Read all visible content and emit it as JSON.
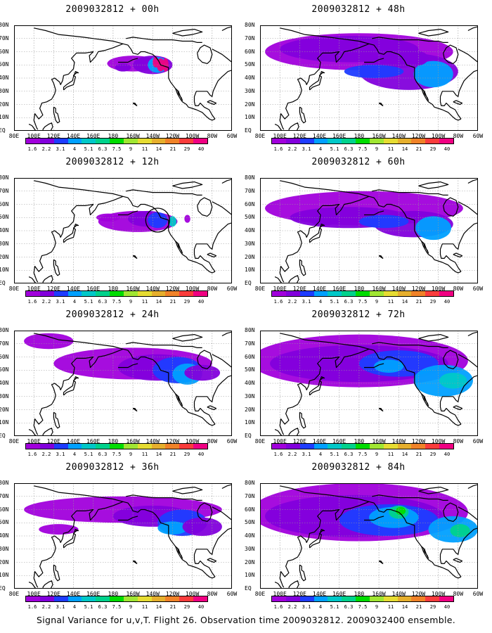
{
  "chart_data": {
    "type": "heatmap",
    "caption": "Signal Variance for u,v,T. Flight 26. Observation time 2009032812. 2009032400 ensemble.",
    "x_ticks": [
      "80E",
      "100E",
      "120E",
      "140E",
      "160E",
      "180",
      "160W",
      "140W",
      "120W",
      "100W",
      "80W",
      "60W"
    ],
    "y_ticks": [
      "80N",
      "70N",
      "60N",
      "50N",
      "40N",
      "30N",
      "20N",
      "10N",
      "EQ"
    ],
    "colorbar_levels": [
      "1.6",
      "2.2",
      "3.1",
      "4",
      "5.1",
      "6.3",
      "7.5",
      "9",
      "11",
      "14",
      "21",
      "29",
      "40"
    ],
    "colorbar_colors": [
      "#a100dc",
      "#8200dc",
      "#1e3cff",
      "#00a0ff",
      "#00c8c8",
      "#00d28c",
      "#00dc00",
      "#a0e632",
      "#e6dc32",
      "#e6af2d",
      "#f08228",
      "#fa3c3c",
      "#f00082"
    ],
    "land_color": "#ffffff",
    "coast_color": "#000000",
    "grid": true,
    "panels": [
      {
        "title": "2009032812 + 00h",
        "lead_hours": 0
      },
      {
        "title": "2009032812 + 48h",
        "lead_hours": 48
      },
      {
        "title": "2009032812 + 12h",
        "lead_hours": 12
      },
      {
        "title": "2009032812 + 60h",
        "lead_hours": 60
      },
      {
        "title": "2009032812 + 24h",
        "lead_hours": 24
      },
      {
        "title": "2009032812 + 72h",
        "lead_hours": 72
      },
      {
        "title": "2009032812 + 36h",
        "lead_hours": 36
      },
      {
        "title": "2009032812 + 84h",
        "lead_hours": 84
      }
    ]
  }
}
